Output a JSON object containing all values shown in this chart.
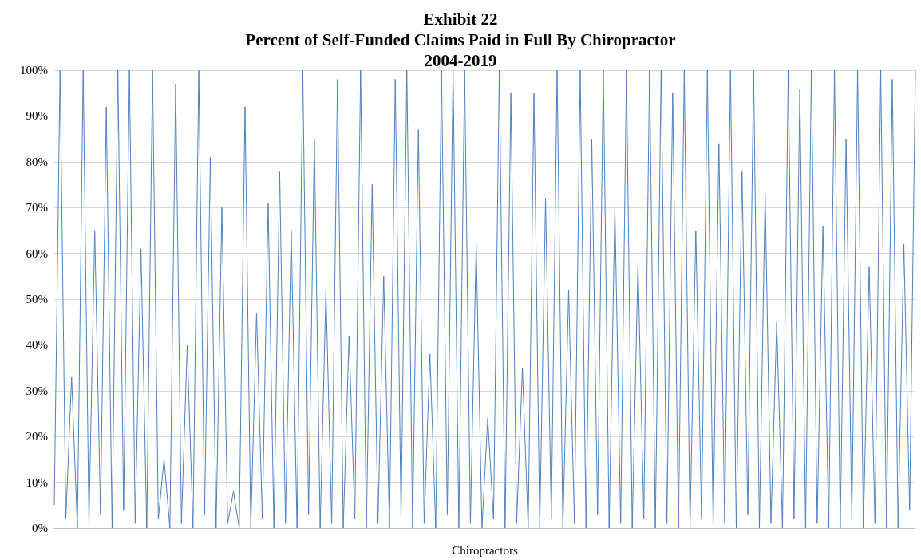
{
  "chart_data": {
    "type": "line",
    "title": "Exhibit 22\nPercent of Self-Funded Claims Paid in Full By Chiropractor\n2004-2019",
    "xlabel": "Chiropractors",
    "categories": [
      null,
      null,
      null,
      null,
      null,
      null,
      null,
      null,
      null,
      null,
      null,
      null,
      null,
      null,
      null,
      null,
      null,
      null,
      null,
      null,
      null,
      null,
      null,
      null,
      null,
      null,
      null,
      null,
      null,
      null,
      null,
      null,
      null,
      null,
      null,
      null,
      null,
      null,
      null,
      null,
      null,
      null,
      null,
      null,
      null,
      null,
      null,
      null,
      null,
      null,
      null,
      null,
      null,
      null,
      null,
      null,
      null,
      null,
      null,
      null,
      null,
      null,
      null,
      null,
      null,
      null,
      null,
      null,
      null,
      null,
      null,
      null,
      null,
      null,
      null,
      null,
      null,
      null,
      null,
      null,
      null,
      null,
      null,
      null,
      null,
      null,
      null,
      null,
      null,
      null,
      null,
      null,
      null,
      null,
      null,
      null,
      null,
      null,
      null,
      null,
      null,
      null,
      null,
      null,
      null,
      null,
      null,
      null,
      null,
      null,
      null,
      null,
      null,
      null,
      null,
      null,
      null,
      null,
      null,
      null,
      null,
      null,
      null,
      null,
      null,
      null,
      null,
      null,
      null,
      null,
      null,
      null,
      null,
      null,
      null,
      null,
      null,
      null,
      null,
      null,
      null,
      null,
      null,
      null,
      null,
      null,
      null,
      null,
      null,
      null
    ],
    "series": [
      {
        "color": "#4f81bd",
        "values": [
          5,
          100,
          2,
          33,
          0,
          100,
          1,
          65,
          3,
          92,
          0,
          100,
          4,
          100,
          1,
          61,
          0,
          100,
          2,
          15,
          0,
          97,
          1,
          40,
          0,
          100,
          3,
          81,
          0,
          70,
          1,
          8,
          0,
          92,
          0,
          47,
          2,
          71,
          0,
          78,
          1,
          65,
          0,
          100,
          3,
          85,
          0,
          52,
          1,
          98,
          0,
          42,
          2,
          100,
          0,
          75,
          1,
          55,
          0,
          98,
          2,
          100,
          0,
          87,
          1,
          38,
          0,
          100,
          3,
          100,
          0,
          100,
          1,
          62,
          0,
          24,
          2,
          100,
          0,
          95,
          1,
          35,
          0,
          95,
          0,
          72,
          2,
          100,
          0,
          52,
          1,
          100,
          0,
          85,
          3,
          100,
          0,
          70,
          1,
          100,
          0,
          58,
          2,
          100,
          0,
          100,
          1,
          95,
          0,
          100,
          0,
          65,
          2,
          100,
          0,
          84,
          1,
          100,
          0,
          78,
          3,
          100,
          0,
          73,
          1,
          45,
          0,
          100,
          2,
          96,
          0,
          100,
          1,
          66,
          0,
          100,
          0,
          85,
          2,
          100,
          0,
          57,
          1,
          100,
          0,
          98,
          0,
          62,
          4,
          100
        ]
      }
    ],
    "ylim": [
      0,
      100
    ],
    "yticks": [
      {
        "value": 0,
        "label": "0%"
      },
      {
        "value": 10,
        "label": "10%"
      },
      {
        "value": 20,
        "label": "20%"
      },
      {
        "value": 30,
        "label": "30%"
      },
      {
        "value": 40,
        "label": "40%"
      },
      {
        "value": 50,
        "label": "50%"
      },
      {
        "value": 60,
        "label": "60%"
      },
      {
        "value": 70,
        "label": "70%"
      },
      {
        "value": 80,
        "label": "80%"
      },
      {
        "value": 90,
        "label": "90%"
      },
      {
        "value": 100,
        "label": "100%"
      }
    ],
    "grid": "y",
    "marker": "none",
    "line_style": "solid"
  }
}
